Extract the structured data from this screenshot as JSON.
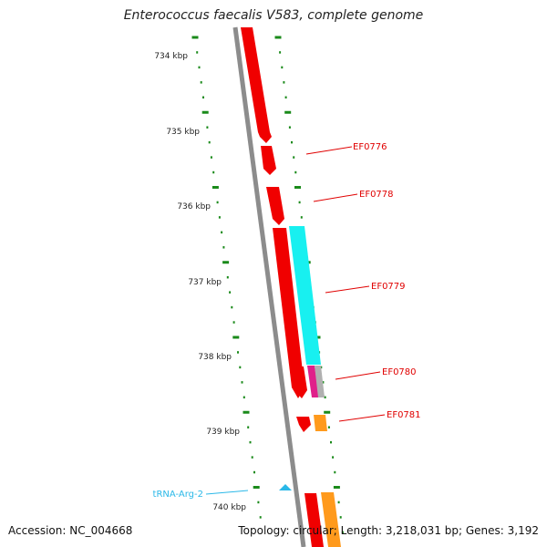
{
  "title": "Enterococcus faecalis V583, complete genome",
  "footer": {
    "accession": "Accession: NC_004668",
    "summary": "Topology: circular; Length: 3,218,031 bp; Genes: 3,192"
  },
  "colors": {
    "backbone": "#8c8c8c",
    "cds_forward": "#f00000",
    "cds_reverse": "#ff9a1c",
    "rrna_like": "#18f0f0",
    "pink_feature": "#e0208a",
    "gray_feature": "#b0b0b0",
    "trna": "#2ab8e8",
    "scale_ticks": "#1a8a1a",
    "gene_label": "#e00000"
  },
  "scale": {
    "unit": "kbp",
    "major_ticks": [
      "734 kbp",
      "735 kbp",
      "736 kbp",
      "737 kbp",
      "738 kbp",
      "739 kbp",
      "740 kbp"
    ]
  },
  "gene_labels": [
    "EF0776",
    "EF0778",
    "EF0779",
    "EF0780",
    "EF0781"
  ],
  "trna_label": "tRNA-Arg-2"
}
